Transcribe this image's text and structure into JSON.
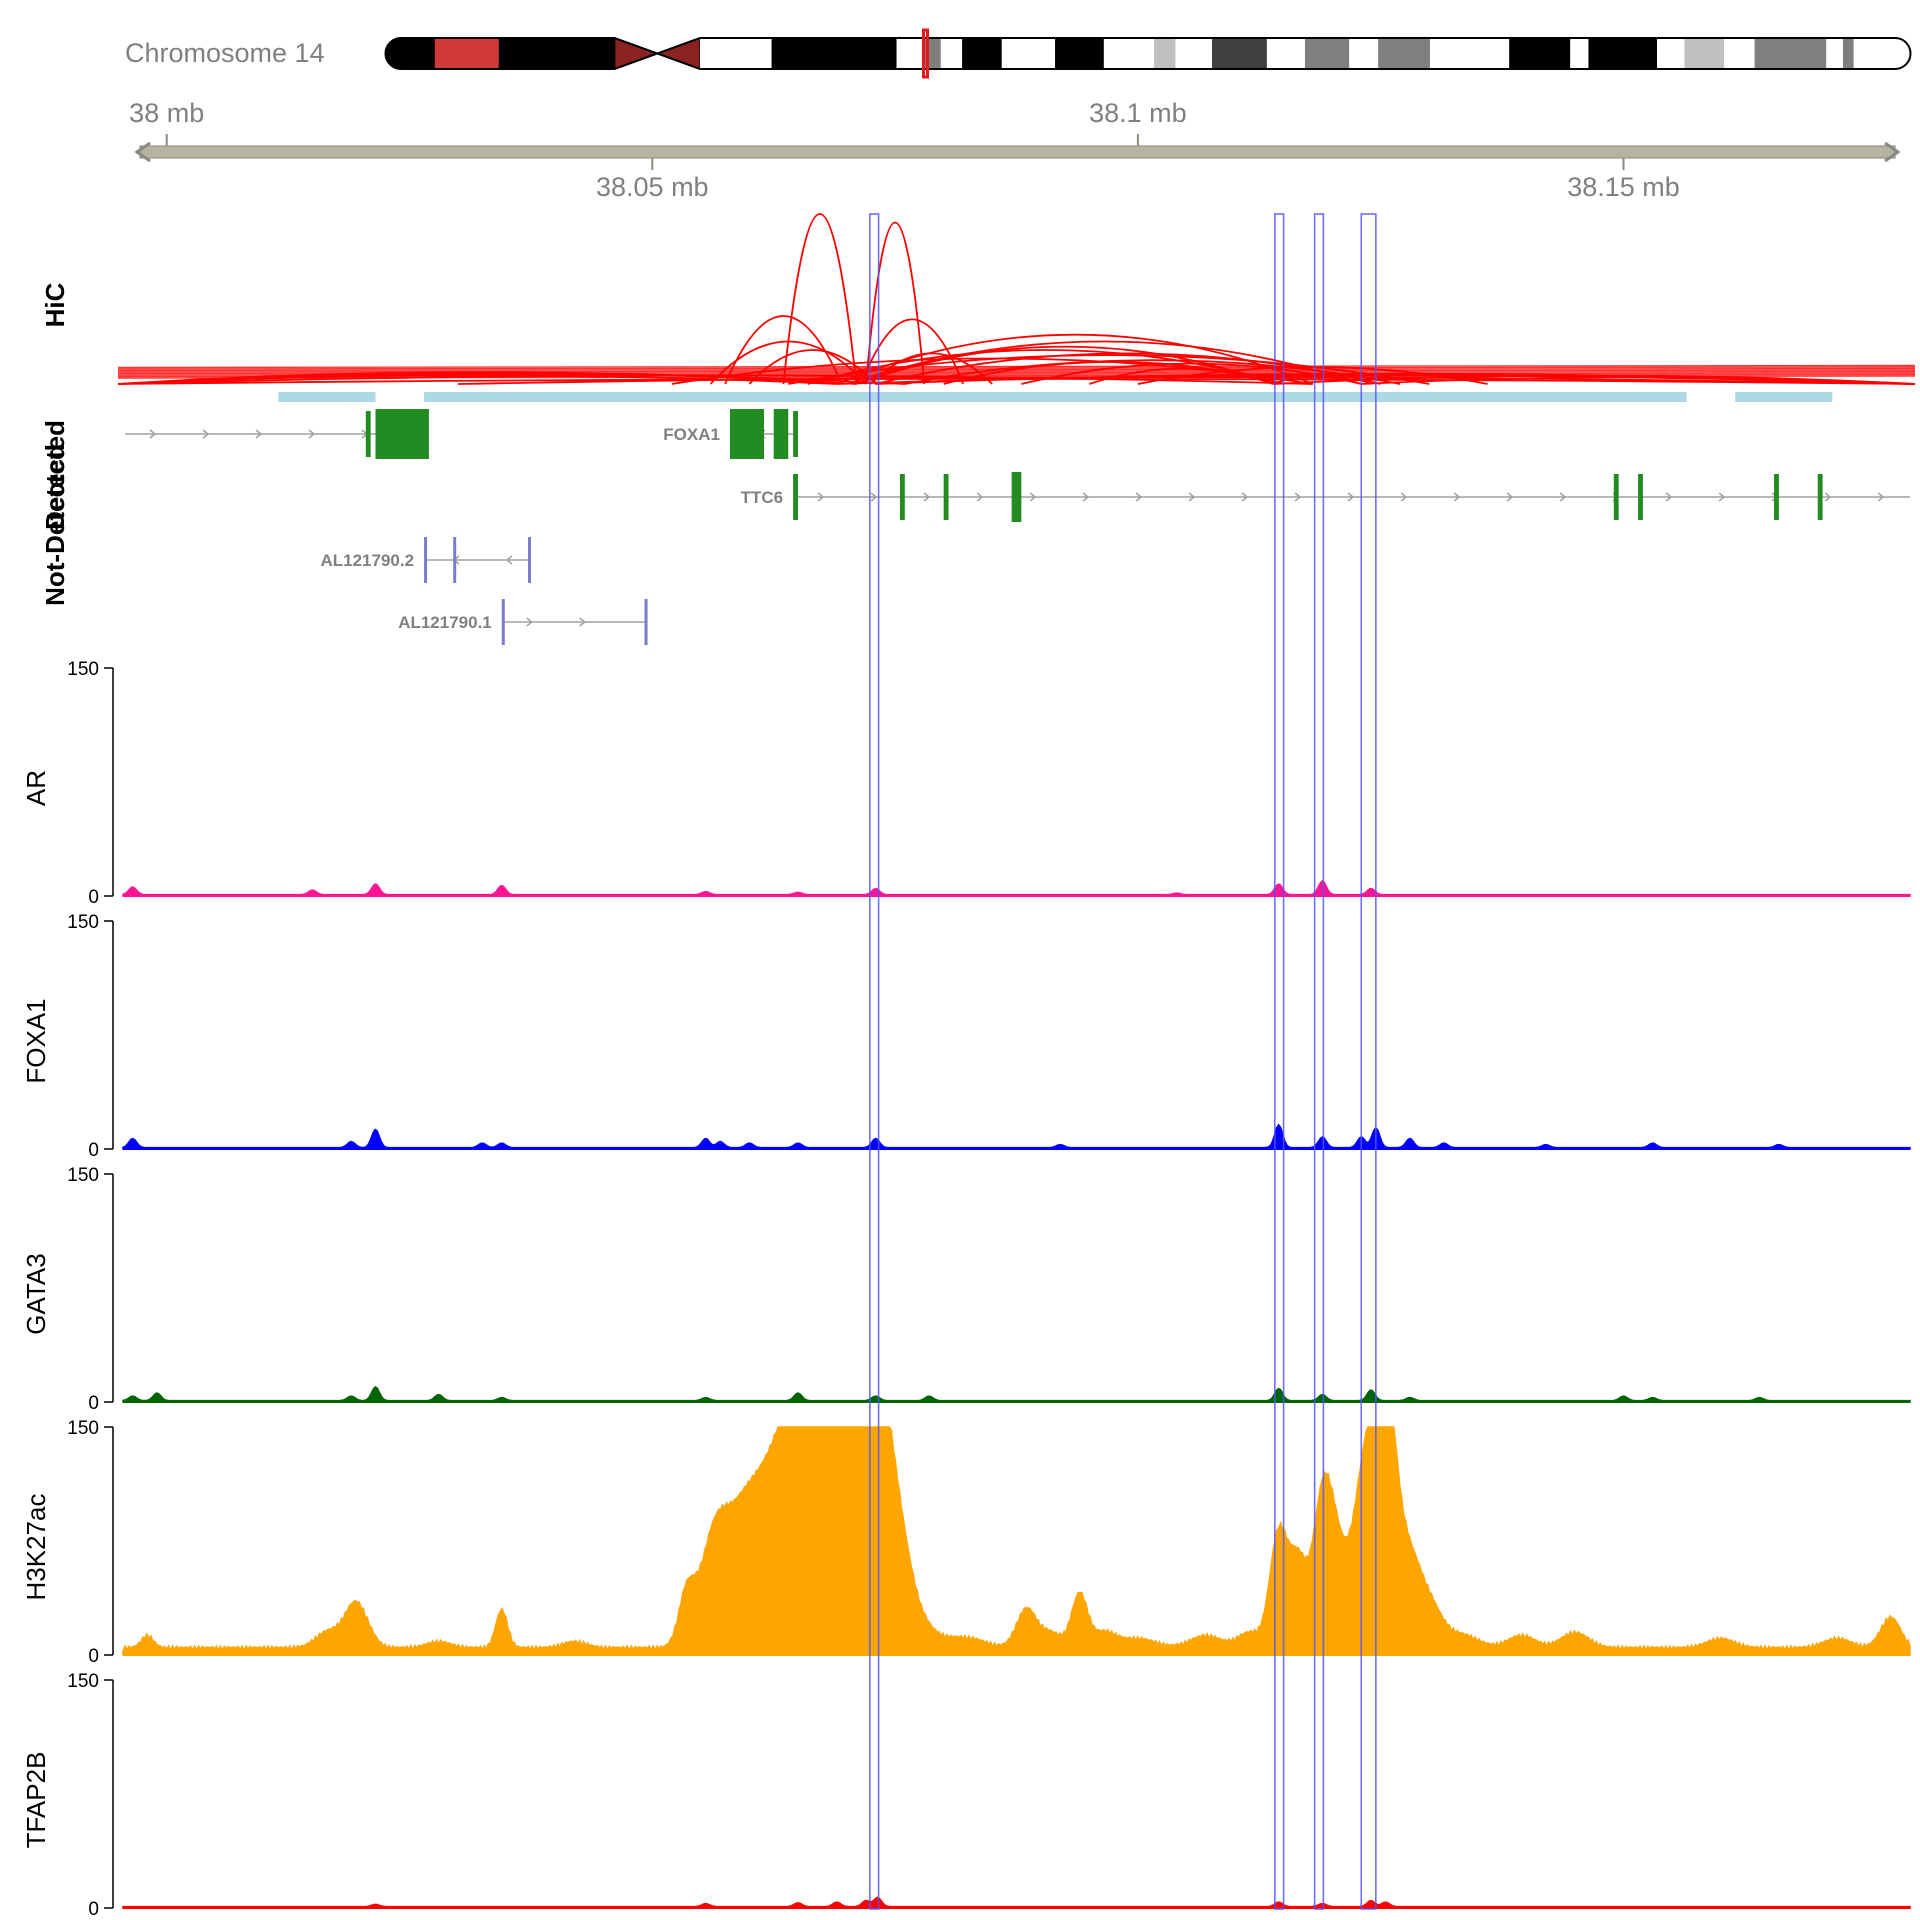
{
  "ideogram": {
    "label": "Chromosome 14",
    "highlight_color": "#e31a1c",
    "bands": [
      {
        "start": 0.0,
        "end": 0.032,
        "fill": "#000000"
      },
      {
        "start": 0.032,
        "end": 0.074,
        "fill": "#d13a3a"
      },
      {
        "start": 0.074,
        "end": 0.15,
        "fill": "#000000"
      },
      {
        "start": 0.15,
        "end": 0.178,
        "fill": "#8b2323",
        "centromere": "left"
      },
      {
        "start": 0.178,
        "end": 0.206,
        "fill": "#8b2323",
        "centromere": "right"
      },
      {
        "start": 0.206,
        "end": 0.253,
        "fill": "#ffffff"
      },
      {
        "start": 0.253,
        "end": 0.335,
        "fill": "#000000"
      },
      {
        "start": 0.335,
        "end": 0.352,
        "fill": "#ffffff"
      },
      {
        "start": 0.352,
        "end": 0.364,
        "fill": "#7f7f7f"
      },
      {
        "start": 0.364,
        "end": 0.378,
        "fill": "#ffffff"
      },
      {
        "start": 0.378,
        "end": 0.404,
        "fill": "#000000"
      },
      {
        "start": 0.404,
        "end": 0.439,
        "fill": "#ffffff"
      },
      {
        "start": 0.439,
        "end": 0.471,
        "fill": "#000000"
      },
      {
        "start": 0.471,
        "end": 0.504,
        "fill": "#ffffff"
      },
      {
        "start": 0.504,
        "end": 0.518,
        "fill": "#c0c0c0"
      },
      {
        "start": 0.518,
        "end": 0.542,
        "fill": "#ffffff"
      },
      {
        "start": 0.542,
        "end": 0.578,
        "fill": "#404040"
      },
      {
        "start": 0.578,
        "end": 0.603,
        "fill": "#ffffff"
      },
      {
        "start": 0.603,
        "end": 0.632,
        "fill": "#7f7f7f"
      },
      {
        "start": 0.632,
        "end": 0.651,
        "fill": "#ffffff"
      },
      {
        "start": 0.651,
        "end": 0.685,
        "fill": "#7f7f7f"
      },
      {
        "start": 0.685,
        "end": 0.737,
        "fill": "#ffffff"
      },
      {
        "start": 0.737,
        "end": 0.777,
        "fill": "#000000"
      },
      {
        "start": 0.777,
        "end": 0.789,
        "fill": "#ffffff"
      },
      {
        "start": 0.789,
        "end": 0.834,
        "fill": "#000000"
      },
      {
        "start": 0.834,
        "end": 0.852,
        "fill": "#ffffff"
      },
      {
        "start": 0.852,
        "end": 0.878,
        "fill": "#c0c0c0"
      },
      {
        "start": 0.878,
        "end": 0.898,
        "fill": "#ffffff"
      },
      {
        "start": 0.898,
        "end": 0.945,
        "fill": "#7f7f7f"
      },
      {
        "start": 0.945,
        "end": 0.956,
        "fill": "#ffffff"
      },
      {
        "start": 0.956,
        "end": 0.963,
        "fill": "#7f7f7f"
      },
      {
        "start": 0.963,
        "end": 1.0,
        "fill": "#ffffff"
      }
    ],
    "highlight_pos": 0.354
  },
  "genome_axis": {
    "top_ticks": [
      {
        "label": "38 mb",
        "mb": 38.0
      },
      {
        "label": "38.1 mb",
        "mb": 38.1
      }
    ],
    "bottom_ticks": [
      {
        "label": "38.05 mb",
        "mb": 38.05
      },
      {
        "label": "38.15 mb",
        "mb": 38.15
      }
    ],
    "axis_color": "#b4b4a0"
  },
  "tracks": {
    "hic_title": "HiC",
    "genes_title": "Detected",
    "genes_title_2": "Not-Detected"
  },
  "chart_data": {
    "type": "genome-browser",
    "region": {
      "chromosome": "14",
      "start_mb": 37.9955,
      "end_mb": 38.1795
    },
    "highlights_mb": [
      [
        38.0724,
        38.0733
      ],
      [
        38.1141,
        38.115
      ],
      [
        38.1182,
        38.1191
      ],
      [
        38.123,
        38.1245
      ]
    ],
    "hic": {
      "color": "#ff0000",
      "anchor_bar_color": "#add8e6",
      "anchors_mb": [
        [
          38.0115,
          38.0215
        ],
        [
          38.0265,
          38.1565
        ],
        [
          38.1615,
          38.1715
        ]
      ],
      "arcs": [
        [
          38.0635,
          38.071,
          1.0
        ],
        [
          38.072,
          38.078,
          0.95
        ],
        [
          38.0575,
          38.0695,
          0.4
        ],
        [
          38.0715,
          38.082,
          0.38
        ],
        [
          38.056,
          38.072,
          0.25
        ],
        [
          38.06,
          38.073,
          0.2
        ],
        [
          38.0725,
          38.085,
          0.18
        ],
        [
          38.069,
          38.118,
          0.29
        ],
        [
          38.07,
          38.123,
          0.25
        ],
        [
          38.071,
          38.114,
          0.22
        ],
        [
          38.066,
          38.115,
          0.2
        ],
        [
          38.073,
          38.125,
          0.18
        ],
        [
          38.064,
          38.13,
          0.17
        ],
        [
          38.052,
          38.118,
          0.15
        ],
        [
          38.076,
          38.127,
          0.14
        ],
        [
          38.08,
          38.115,
          0.13
        ],
        [
          38.088,
          38.123,
          0.12
        ],
        [
          38.1,
          38.136,
          0.1
        ],
        [
          38.095,
          38.114,
          0.09
        ],
        [
          38.114,
          38.124,
          0.06
        ],
        [
          37.9955,
          38.071,
          0.07
        ],
        [
          37.9955,
          38.076,
          0.06
        ],
        [
          37.9955,
          38.069,
          0.05
        ],
        [
          37.9955,
          38.118,
          0.05
        ],
        [
          38.073,
          38.1795,
          0.06
        ],
        [
          38.114,
          38.1795,
          0.05
        ],
        [
          38.069,
          38.1795,
          0.05
        ],
        [
          38.123,
          38.1795,
          0.04
        ],
        [
          37.9955,
          38.1795,
          0.03
        ],
        [
          38.03,
          38.1795,
          0.04
        ]
      ]
    },
    "genes": [
      {
        "name": "",
        "row": 0,
        "strand": "+",
        "color": "#228b22",
        "start": 37.9955,
        "end": 38.022,
        "exons": [
          [
            38.0205,
            38.021
          ],
          [
            38.0215,
            38.027
          ]
        ],
        "show_label": false
      },
      {
        "name": "FOXA1",
        "row": 0,
        "strand": "-",
        "color": "#228b22",
        "start": 38.058,
        "end": 38.065,
        "exons": [
          [
            38.058,
            38.0615
          ],
          [
            38.0625,
            38.064
          ],
          [
            38.0645,
            38.065
          ]
        ],
        "show_label": true
      },
      {
        "name": "TTC6",
        "row": 1,
        "strand": "+",
        "color": "#228b22",
        "start": 38.0645,
        "end": 38.1795,
        "exons": [
          [
            38.0645,
            38.065
          ],
          [
            38.0755,
            38.076
          ],
          [
            38.08,
            38.0805
          ],
          [
            38.087,
            38.088
          ],
          [
            38.149,
            38.1495
          ],
          [
            38.1515,
            38.152
          ],
          [
            38.1655,
            38.166
          ],
          [
            38.17,
            38.1705
          ]
        ],
        "show_label": true
      },
      {
        "name": "AL121790.2",
        "row": 2,
        "strand": "-",
        "color": "#7b7bcf",
        "start": 38.0265,
        "end": 38.0375,
        "exons": [
          [
            38.0265,
            38.0268
          ],
          [
            38.0295,
            38.0298
          ],
          [
            38.0372,
            38.0375
          ]
        ],
        "show_label": true
      },
      {
        "name": "AL121790.1",
        "row": 3,
        "strand": "+",
        "color": "#7b7bcf",
        "start": 38.0345,
        "end": 38.0495,
        "exons": [
          [
            38.0345,
            38.0348
          ],
          [
            38.0492,
            38.0495
          ]
        ],
        "show_label": true
      }
    ],
    "coverage_tracks": [
      {
        "name": "AR",
        "color": "#ff1493",
        "ylim": [
          0,
          150
        ],
        "peaks": [
          [
            37.9965,
            5
          ],
          [
            38.0215,
            7
          ],
          [
            38.015,
            3
          ],
          [
            38.0345,
            6
          ],
          [
            38.0555,
            2
          ],
          [
            38.065,
            1.5
          ],
          [
            38.073,
            4
          ],
          [
            38.1145,
            7
          ],
          [
            38.119,
            9
          ],
          [
            38.124,
            4
          ],
          [
            38.104,
            1
          ]
        ]
      },
      {
        "name": "FOXA1",
        "color": "#0000ff",
        "ylim": [
          0,
          150
        ],
        "peaks": [
          [
            37.9965,
            6
          ],
          [
            38.0215,
            12
          ],
          [
            38.019,
            4
          ],
          [
            38.0325,
            3
          ],
          [
            38.0345,
            3
          ],
          [
            38.0555,
            6
          ],
          [
            38.057,
            4
          ],
          [
            38.06,
            3
          ],
          [
            38.065,
            3
          ],
          [
            38.073,
            6
          ],
          [
            38.092,
            2
          ],
          [
            38.1145,
            15
          ],
          [
            38.119,
            7
          ],
          [
            38.123,
            7
          ],
          [
            38.1245,
            13
          ],
          [
            38.128,
            6
          ],
          [
            38.1315,
            3
          ],
          [
            38.142,
            2
          ],
          [
            38.153,
            3
          ],
          [
            38.166,
            2
          ]
        ]
      },
      {
        "name": "GATA3",
        "color": "#006400",
        "ylim": [
          0,
          150
        ],
        "peaks": [
          [
            37.9965,
            3
          ],
          [
            37.999,
            5
          ],
          [
            38.0215,
            9
          ],
          [
            38.019,
            3
          ],
          [
            38.028,
            4
          ],
          [
            38.0345,
            2
          ],
          [
            38.0555,
            2
          ],
          [
            38.065,
            5
          ],
          [
            38.073,
            3
          ],
          [
            38.0785,
            3
          ],
          [
            38.1145,
            8
          ],
          [
            38.119,
            4
          ],
          [
            38.124,
            7
          ],
          [
            38.128,
            2
          ],
          [
            38.15,
            3
          ],
          [
            38.153,
            2
          ],
          [
            38.164,
            2
          ]
        ]
      },
      {
        "name": "H3K27ac",
        "color": "#ffa500",
        "ylim": [
          0,
          150
        ],
        "peaks": [
          [
            37.998,
            8,
            0.0006
          ],
          [
            38.0195,
            30,
            0.0012
          ],
          [
            38.0165,
            10,
            0.0012
          ],
          [
            38.0345,
            25,
            0.0006
          ],
          [
            38.028,
            4,
            0.0012
          ],
          [
            38.042,
            4,
            0.0012
          ],
          [
            38.0535,
            30,
            0.0008
          ],
          [
            38.0565,
            75,
            0.0016
          ],
          [
            38.0595,
            55,
            0.0016
          ],
          [
            38.0625,
            90,
            0.0022
          ],
          [
            38.066,
            130,
            0.0022
          ],
          [
            38.069,
            150,
            0.0022
          ],
          [
            38.072,
            150,
            0.0018
          ],
          [
            38.0745,
            80,
            0.0018
          ],
          [
            38.0775,
            10,
            0.0022
          ],
          [
            38.0825,
            6,
            0.0018
          ],
          [
            38.0885,
            25,
            0.001
          ],
          [
            38.094,
            35,
            0.0008
          ],
          [
            38.091,
            10,
            0.0012
          ],
          [
            38.0965,
            10,
            0.0012
          ],
          [
            38.1,
            6,
            0.0018
          ],
          [
            38.107,
            8,
            0.0016
          ],
          [
            38.1115,
            10,
            0.0012
          ],
          [
            38.1145,
            75,
            0.0009
          ],
          [
            38.1165,
            55,
            0.0009
          ],
          [
            38.119,
            85,
            0.001
          ],
          [
            38.1205,
            55,
            0.0012
          ],
          [
            38.1235,
            120,
            0.0012
          ],
          [
            38.1255,
            140,
            0.001
          ],
          [
            38.1275,
            60,
            0.0014
          ],
          [
            38.13,
            25,
            0.0014
          ],
          [
            38.1335,
            8,
            0.0016
          ],
          [
            38.1395,
            8,
            0.0014
          ],
          [
            38.145,
            10,
            0.0014
          ],
          [
            38.16,
            6,
            0.0014
          ],
          [
            38.172,
            6,
            0.0014
          ],
          [
            38.1775,
            20,
            0.001
          ]
        ]
      },
      {
        "name": "TFAP2B",
        "color": "#ff0000",
        "ylim": [
          0,
          150
        ],
        "peaks": [
          [
            38.0215,
            1.5
          ],
          [
            38.0555,
            2
          ],
          [
            38.065,
            2.5
          ],
          [
            38.069,
            3
          ],
          [
            38.072,
            4
          ],
          [
            38.0732,
            6
          ],
          [
            38.1145,
            3
          ],
          [
            38.119,
            2
          ],
          [
            38.124,
            4
          ],
          [
            38.1255,
            3
          ]
        ]
      }
    ]
  }
}
